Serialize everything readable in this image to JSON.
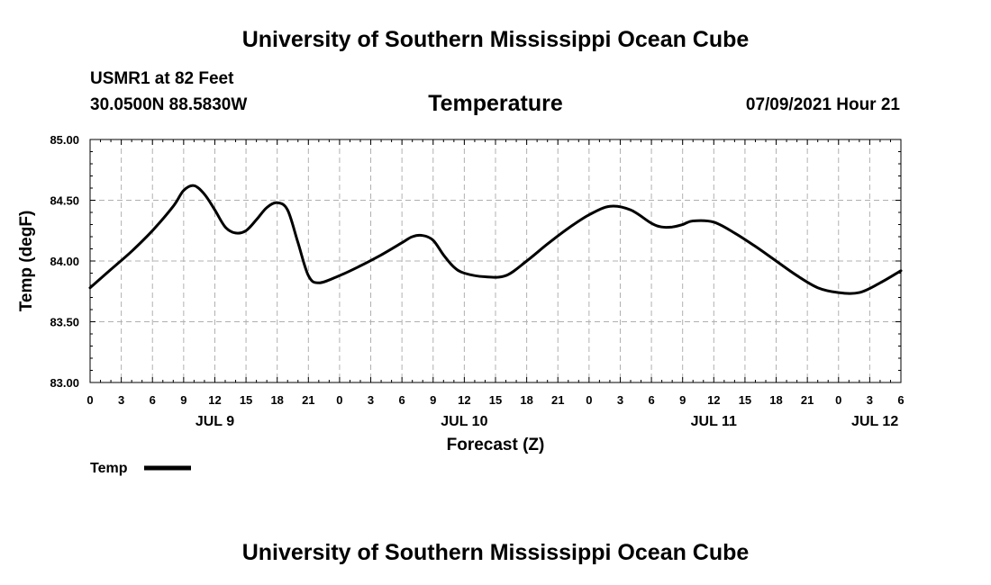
{
  "header": {
    "title": "University of Southern Mississippi Ocean Cube",
    "station": "USMR1 at 82 Feet",
    "coords": "30.0500N  88.5830W",
    "date": "07/09/2021 Hour 21"
  },
  "footer": {
    "title": "University of Southern Mississippi Ocean Cube"
  },
  "chart_data": {
    "type": "line",
    "title": "Temperature",
    "xlabel": "Forecast (Z)",
    "ylabel": "Temp (degF)",
    "ylim": [
      83.0,
      85.0
    ],
    "xlim": [
      0,
      78
    ],
    "x_unit": "hours since JUL 9 00Z",
    "grid": true,
    "y_ticks": [
      "83.00",
      "83.50",
      "84.00",
      "84.50",
      "85.00"
    ],
    "y_tick_values": [
      83.0,
      83.5,
      84.0,
      84.5,
      85.0
    ],
    "x_tick_values": [
      0,
      3,
      6,
      9,
      12,
      15,
      18,
      21,
      24,
      27,
      30,
      33,
      36,
      39,
      42,
      45,
      48,
      51,
      54,
      57,
      60,
      63,
      66,
      69,
      72,
      75,
      78
    ],
    "x_tick_labels": [
      "0",
      "3",
      "6",
      "9",
      "12",
      "15",
      "18",
      "21",
      "0",
      "3",
      "6",
      "9",
      "12",
      "15",
      "18",
      "21",
      "0",
      "3",
      "6",
      "9",
      "12",
      "15",
      "18",
      "21",
      "0",
      "3",
      "6"
    ],
    "date_labels": [
      {
        "label": "JUL 9",
        "x": 12
      },
      {
        "label": "JUL 10",
        "x": 36
      },
      {
        "label": "JUL 11",
        "x": 60
      },
      {
        "label": "JUL 12",
        "x": 75.5
      }
    ],
    "legend": {
      "position": "bottom-left",
      "label": "Temp",
      "color": "#000000"
    },
    "series": [
      {
        "name": "Temp",
        "color": "#000000",
        "x": [
          0,
          2,
          4,
          6,
          8,
          9,
          10,
          11,
          12,
          13,
          14,
          15,
          16,
          17,
          18,
          19,
          20,
          21,
          22,
          24,
          26,
          28,
          30,
          31,
          32,
          33,
          34,
          35,
          36,
          38,
          40,
          42,
          44,
          46,
          48,
          50,
          52,
          54,
          55,
          56,
          57,
          58,
          60,
          62,
          64,
          66,
          68,
          70,
          72,
          74,
          76,
          78
        ],
        "y": [
          83.78,
          83.93,
          84.08,
          84.25,
          84.45,
          84.58,
          84.62,
          84.55,
          84.42,
          84.28,
          84.23,
          84.25,
          84.34,
          84.44,
          84.48,
          84.42,
          84.15,
          83.88,
          83.82,
          83.88,
          83.96,
          84.05,
          84.15,
          84.2,
          84.21,
          84.17,
          84.05,
          83.95,
          83.9,
          83.87,
          83.88,
          84.0,
          84.14,
          84.27,
          84.38,
          84.45,
          84.42,
          84.31,
          84.28,
          84.28,
          84.3,
          84.33,
          84.32,
          84.23,
          84.12,
          84.0,
          83.88,
          83.78,
          83.74,
          83.74,
          83.82,
          83.92
        ]
      }
    ]
  }
}
